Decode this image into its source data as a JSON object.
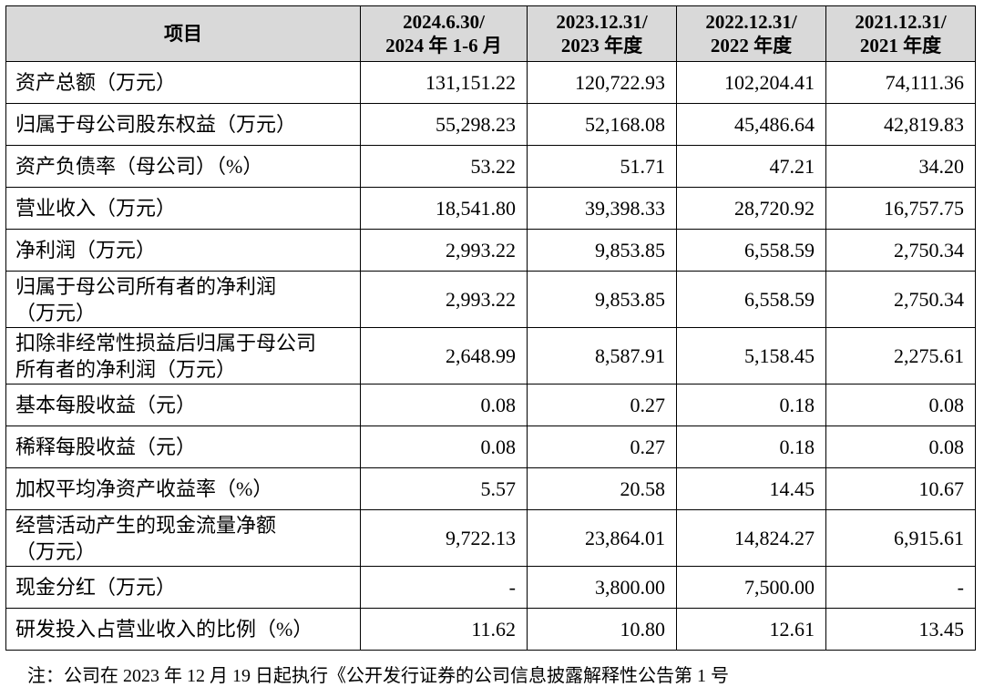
{
  "header": {
    "item": "项目",
    "periods": [
      {
        "line1": "2024.6.30/",
        "line2": "2024 年 1-6 月"
      },
      {
        "line1": "2023.12.31/",
        "line2": "2023 年度"
      },
      {
        "line1": "2022.12.31/",
        "line2": "2022 年度"
      },
      {
        "line1": "2021.12.31/",
        "line2": "2021 年度"
      }
    ]
  },
  "rows": [
    {
      "label": "资产总额（万元）",
      "values": [
        "131,151.22",
        "120,722.93",
        "102,204.41",
        "74,111.36"
      ]
    },
    {
      "label": "归属于母公司股东权益（万元）",
      "values": [
        "55,298.23",
        "52,168.08",
        "45,486.64",
        "42,819.83"
      ]
    },
    {
      "label": "资产负债率（母公司）（%）",
      "values": [
        "53.22",
        "51.71",
        "47.21",
        "34.20"
      ]
    },
    {
      "label": "营业收入（万元）",
      "values": [
        "18,541.80",
        "39,398.33",
        "28,720.92",
        "16,757.75"
      ]
    },
    {
      "label": "净利润（万元）",
      "values": [
        "2,993.22",
        "9,853.85",
        "6,558.59",
        "2,750.34"
      ]
    },
    {
      "label_line1": "归属于母公司所有者的净利润",
      "label_line2": "（万元）",
      "values": [
        "2,993.22",
        "9,853.85",
        "6,558.59",
        "2,750.34"
      ]
    },
    {
      "label_line1": "扣除非经常性损益后归属于母公司",
      "label_line2": "所有者的净利润（万元）",
      "values": [
        "2,648.99",
        "8,587.91",
        "5,158.45",
        "2,275.61"
      ]
    },
    {
      "label": "基本每股收益（元）",
      "values": [
        "0.08",
        "0.27",
        "0.18",
        "0.08"
      ]
    },
    {
      "label": "稀释每股收益（元）",
      "values": [
        "0.08",
        "0.27",
        "0.18",
        "0.08"
      ]
    },
    {
      "label": "加权平均净资产收益率（%）",
      "values": [
        "5.57",
        "20.58",
        "14.45",
        "10.67"
      ]
    },
    {
      "label_line1": "经营活动产生的现金流量净额",
      "label_line2": "（万元）",
      "values": [
        "9,722.13",
        "23,864.01",
        "14,824.27",
        "6,915.61"
      ]
    },
    {
      "label": "现金分红（万元）",
      "values": [
        "-",
        "3,800.00",
        "7,500.00",
        "-"
      ]
    },
    {
      "label": "研发投入占营业收入的比例（%）",
      "values": [
        "11.62",
        "10.80",
        "12.61",
        "13.45"
      ]
    }
  ],
  "footnote": "注：公司在 2023 年 12 月 19 日起执行《公开发行证券的公司信息披露解释性公告第 1 号"
}
